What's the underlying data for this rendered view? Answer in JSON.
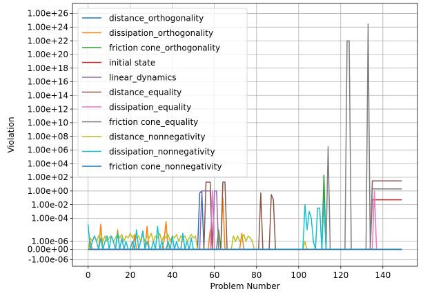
{
  "chart_data": {
    "type": "line",
    "xlabel": "Problem Number",
    "ylabel": "Violation",
    "xlim": [
      -7.45,
      156.45
    ],
    "x_ticks": [
      0,
      20,
      40,
      60,
      80,
      100,
      120,
      140
    ],
    "x_tick_labels": [
      "0",
      "20",
      "40",
      "60",
      "80",
      "100",
      "120",
      "140"
    ],
    "y_scale": "symlog",
    "y_ticks": [
      -1e-06,
      0,
      1e-06,
      0.0001,
      0.01,
      1,
      100.0,
      10000.0,
      1000000.0,
      100000000.0,
      10000000000.0,
      1000000000000.0,
      100000000000000.0,
      1e+16,
      1e+18,
      1e+20,
      1e+22,
      1e+24,
      1e+26
    ],
    "y_tick_labels": [
      "-1.00e-06",
      "0.00e+00",
      "1.00e-06",
      "1.00e-04",
      "1.00e-02",
      "1.00e+00",
      "1.00e+02",
      "1.00e+04",
      "1.00e+06",
      "1.00e+08",
      "1.00e+10",
      "1.00e+12",
      "1.00e+14",
      "1.00e+16",
      "1.00e+18",
      "1.00e+20",
      "1.00e+22",
      "1.00e+24",
      "1.00e+26"
    ],
    "grid": true,
    "legend_position": "upper-left",
    "series": [
      {
        "name": "distance_orthogonality",
        "color": "#1f77b4",
        "points": [
          [
            0,
            0
          ],
          [
            52,
            0
          ],
          [
            53,
            0.5
          ],
          [
            54,
            1
          ],
          [
            55,
            0
          ],
          [
            149,
            0
          ]
        ]
      },
      {
        "name": "dissipation_orthogonality",
        "color": "#ff7f0e",
        "points": [
          [
            0,
            0
          ],
          [
            1,
            1e-06
          ],
          [
            2,
            0
          ],
          [
            5,
            0
          ],
          [
            6,
            3e-05
          ],
          [
            7,
            0
          ],
          [
            13,
            0
          ],
          [
            14,
            1e-05
          ],
          [
            15,
            0
          ],
          [
            21,
            0
          ],
          [
            22,
            3e-06
          ],
          [
            23,
            0
          ],
          [
            27,
            0
          ],
          [
            28,
            2e-05
          ],
          [
            29,
            0
          ],
          [
            35,
            0
          ],
          [
            36,
            1e-06
          ],
          [
            37,
            5e-05
          ],
          [
            38,
            0
          ],
          [
            44,
            0
          ],
          [
            45,
            3e-06
          ],
          [
            46,
            0
          ],
          [
            57,
            0
          ],
          [
            58,
            1e-05
          ],
          [
            59,
            0
          ],
          [
            63,
            0
          ],
          [
            64,
            0.1
          ],
          [
            65,
            0
          ],
          [
            72,
            0
          ],
          [
            73,
            5e-06
          ],
          [
            74,
            0
          ],
          [
            111,
            0
          ],
          [
            112,
            0.1
          ],
          [
            113,
            0
          ],
          [
            149,
            0
          ]
        ]
      },
      {
        "name": "friction cone_orthogonality",
        "color": "#2ca02c",
        "points": [
          [
            0,
            0
          ],
          [
            61,
            0
          ],
          [
            62,
            1e-05
          ],
          [
            63,
            0
          ],
          [
            111,
            0
          ],
          [
            112,
            200
          ],
          [
            113,
            0
          ],
          [
            149,
            0
          ]
        ]
      },
      {
        "name": "initial state",
        "color": "#d62728",
        "points": [
          [
            0,
            0
          ],
          [
            134,
            0
          ],
          [
            135,
            0.05
          ],
          [
            149,
            0.05
          ]
        ]
      },
      {
        "name": "linear_dynamics",
        "color": "#9467bd",
        "points": [
          [
            0,
            0
          ],
          [
            53,
            0
          ],
          [
            54,
            1
          ],
          [
            58,
            1
          ],
          [
            59,
            0
          ],
          [
            60,
            1
          ],
          [
            61,
            1
          ],
          [
            62,
            0
          ],
          [
            149,
            0
          ]
        ]
      },
      {
        "name": "distance_equality",
        "color": "#8c564b",
        "points": [
          [
            0,
            0
          ],
          [
            55,
            0
          ],
          [
            56,
            20
          ],
          [
            58,
            20
          ],
          [
            59,
            0
          ],
          [
            63,
            0
          ],
          [
            64,
            20
          ],
          [
            65,
            20
          ],
          [
            66,
            0
          ],
          [
            81,
            0
          ],
          [
            82,
            0.5
          ],
          [
            83,
            0
          ],
          [
            86,
            0
          ],
          [
            87,
            0.3
          ],
          [
            88,
            0.05
          ],
          [
            89,
            0
          ],
          [
            134,
            0
          ],
          [
            135,
            30
          ],
          [
            149,
            30
          ]
        ]
      },
      {
        "name": "dissipation_equality",
        "color": "#e377c2",
        "points": [
          [
            0,
            0
          ],
          [
            58,
            0
          ],
          [
            59,
            1
          ],
          [
            60,
            0
          ],
          [
            135,
            0
          ],
          [
            136,
            1
          ],
          [
            137,
            0
          ],
          [
            149,
            0
          ]
        ]
      },
      {
        "name": "friction cone_equality",
        "color": "#7f7f7f",
        "points": [
          [
            0,
            0
          ],
          [
            113,
            0
          ],
          [
            114,
            3000000.0
          ],
          [
            115,
            0
          ],
          [
            122,
            0
          ],
          [
            123,
            1e+22
          ],
          [
            124,
            1e+22
          ],
          [
            125,
            0
          ],
          [
            132,
            0
          ],
          [
            133,
            3e+24
          ],
          [
            134,
            0
          ],
          [
            135,
            2
          ],
          [
            149,
            2
          ]
        ]
      },
      {
        "name": "distance_nonnegativity",
        "color": "#bcbd22",
        "points": [
          [
            0,
            0
          ],
          [
            1,
            2e-06
          ],
          [
            2,
            1e-06
          ],
          [
            3,
            3e-06
          ],
          [
            4,
            1e-06
          ],
          [
            5,
            3e-06
          ],
          [
            6,
            5e-06
          ],
          [
            7,
            1e-06
          ],
          [
            8,
            3e-06
          ],
          [
            9,
            1e-06
          ],
          [
            10,
            2e-06
          ],
          [
            11,
            3e-06
          ],
          [
            12,
            1e-06
          ],
          [
            13,
            2e-06
          ],
          [
            14,
            5e-06
          ],
          [
            15,
            2e-06
          ],
          [
            16,
            4e-06
          ],
          [
            17,
            1e-06
          ],
          [
            18,
            3e-06
          ],
          [
            19,
            2e-06
          ],
          [
            20,
            5e-06
          ],
          [
            21,
            2e-06
          ],
          [
            22,
            4e-06
          ],
          [
            23,
            2e-06
          ],
          [
            24,
            3e-06
          ],
          [
            25,
            1e-06
          ],
          [
            26,
            4e-06
          ],
          [
            27,
            1e-06
          ],
          [
            28,
            3e-06
          ],
          [
            29,
            2e-06
          ],
          [
            30,
            5e-06
          ],
          [
            31,
            1e-06
          ],
          [
            32,
            3e-06
          ],
          [
            33,
            2e-06
          ],
          [
            34,
            5e-06
          ],
          [
            35,
            1e-06
          ],
          [
            36,
            3e-06
          ],
          [
            37,
            2e-06
          ],
          [
            38,
            4e-06
          ],
          [
            39,
            1e-06
          ],
          [
            40,
            3e-06
          ],
          [
            41,
            2e-06
          ],
          [
            42,
            4e-06
          ],
          [
            43,
            1e-06
          ],
          [
            44,
            3e-06
          ],
          [
            45,
            2e-06
          ],
          [
            46,
            3e-06
          ],
          [
            47,
            1e-06
          ],
          [
            48,
            2e-06
          ],
          [
            49,
            4e-06
          ],
          [
            50,
            2e-06
          ],
          [
            51,
            3e-06
          ],
          [
            52,
            0
          ],
          [
            68,
            0
          ],
          [
            69,
            3e-06
          ],
          [
            70,
            1e-06
          ],
          [
            71,
            3e-06
          ],
          [
            72,
            1e-06
          ],
          [
            73,
            2e-06
          ],
          [
            74,
            4e-06
          ],
          [
            75,
            1e-06
          ],
          [
            76,
            3e-06
          ],
          [
            77,
            2e-06
          ],
          [
            78,
            1e-06
          ],
          [
            79,
            0
          ],
          [
            102,
            0
          ],
          [
            103,
            1e-06
          ],
          [
            104,
            0
          ],
          [
            149,
            0
          ]
        ]
      },
      {
        "name": "dissipation_nonnegativity",
        "color": "#17becf",
        "points": [
          [
            0,
            3e-05
          ],
          [
            1,
            0
          ],
          [
            2,
            1e-06
          ],
          [
            3,
            3e-06
          ],
          [
            4,
            1e-06
          ],
          [
            5,
            0
          ],
          [
            6,
            2e-06
          ],
          [
            7,
            0
          ],
          [
            8,
            1e-06
          ],
          [
            9,
            3e-06
          ],
          [
            10,
            0
          ],
          [
            11,
            3e-06
          ],
          [
            12,
            1e-06
          ],
          [
            13,
            0
          ],
          [
            14,
            5e-06
          ],
          [
            15,
            0
          ],
          [
            16,
            2e-06
          ],
          [
            17,
            0
          ],
          [
            18,
            1e-06
          ],
          [
            19,
            0
          ],
          [
            20,
            0
          ],
          [
            21,
            1e-06
          ],
          [
            22,
            0
          ],
          [
            23,
            1e-05
          ],
          [
            24,
            0
          ],
          [
            25,
            1e-06
          ],
          [
            26,
            8e-06
          ],
          [
            27,
            0
          ],
          [
            28,
            1e-06
          ],
          [
            29,
            0
          ],
          [
            30,
            0
          ],
          [
            31,
            1e-06
          ],
          [
            32,
            0
          ],
          [
            33,
            2e-05
          ],
          [
            34,
            0
          ],
          [
            35,
            1e-06
          ],
          [
            36,
            0
          ],
          [
            37,
            0
          ],
          [
            38,
            1e-06
          ],
          [
            39,
            0
          ],
          [
            40,
            3e-06
          ],
          [
            41,
            0
          ],
          [
            42,
            1e-06
          ],
          [
            43,
            0
          ],
          [
            44,
            0
          ],
          [
            45,
            5e-06
          ],
          [
            46,
            0
          ],
          [
            47,
            1e-06
          ],
          [
            48,
            0
          ],
          [
            49,
            2e-06
          ],
          [
            50,
            0
          ],
          [
            51,
            0
          ],
          [
            52,
            0
          ],
          [
            102,
            0
          ],
          [
            103,
            0.01
          ],
          [
            104,
            1e-05
          ],
          [
            105,
            0.001
          ],
          [
            106,
            0.0001
          ],
          [
            107,
            1e-06
          ],
          [
            108,
            0
          ],
          [
            109,
            0.003
          ],
          [
            110,
            0.003
          ],
          [
            111,
            0
          ],
          [
            112,
            0.05
          ],
          [
            113,
            0
          ],
          [
            149,
            0
          ]
        ]
      },
      {
        "name": "friction cone_nonnegativity",
        "color": "#1f77b4",
        "points": [
          [
            0,
            0
          ],
          [
            149,
            0
          ]
        ]
      }
    ]
  }
}
